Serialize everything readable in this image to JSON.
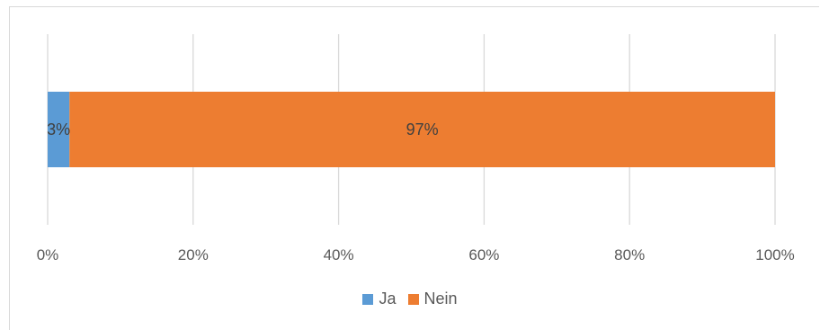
{
  "chart_data": {
    "type": "bar",
    "orientation": "horizontal",
    "stacked": "100%",
    "categories": [
      ""
    ],
    "series": [
      {
        "name": "Ja",
        "values": [
          3
        ],
        "color": "#5b9bd5",
        "label": "3%"
      },
      {
        "name": "Nein",
        "values": [
          97
        ],
        "color": "#ed7d31",
        "label": "97%"
      }
    ],
    "xlim": [
      0,
      100
    ],
    "x_ticks": [
      "0%",
      "20%",
      "40%",
      "60%",
      "80%",
      "100%"
    ],
    "grid": true,
    "legend_position": "bottom"
  }
}
